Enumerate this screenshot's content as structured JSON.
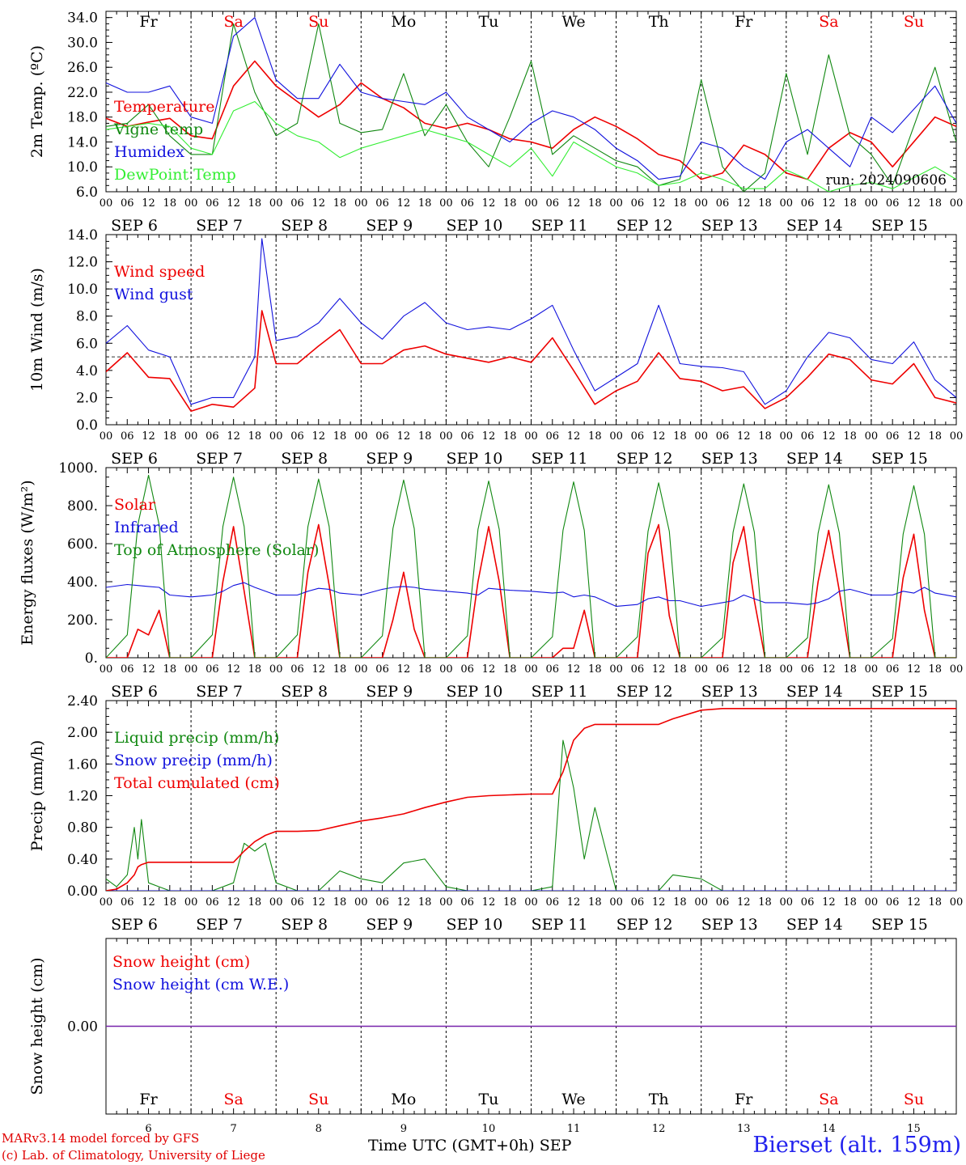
{
  "footer": {
    "model": "MARv3.14 model forced by GFS",
    "copyright": "(c) Lab. of Climatology, University of Liege",
    "time_label": "Time UTC (GMT+0h) SEP",
    "site": "Bierset (alt. 159m)"
  },
  "days": {
    "weekdays": [
      "Fr",
      "Sa",
      "Su",
      "Mo",
      "Tu",
      "We",
      "Th",
      "Fr",
      "Sa",
      "Su"
    ],
    "weekend_flags": [
      false,
      true,
      true,
      false,
      false,
      false,
      false,
      false,
      true,
      true
    ],
    "date_labels": [
      "SEP  6",
      "SEP  7",
      "SEP  8",
      "SEP  9",
      "SEP 10",
      "SEP 11",
      "SEP 12",
      "SEP 13",
      "SEP 14",
      "SEP 15"
    ],
    "day_numbers": [
      "6",
      "7",
      "8",
      "9",
      "10",
      "11",
      "12",
      "13",
      "14",
      "15"
    ],
    "hour_ticks": [
      "00",
      "06",
      "12",
      "18"
    ],
    "end_tick": "00"
  },
  "colors": {
    "red": "#ee0000",
    "green": "#118811",
    "blue": "#1111dd",
    "lightgreen": "#33ee33",
    "purple": "#7722aa",
    "weekend": "#ee0000"
  },
  "chart_data": [
    {
      "type": "line",
      "ylabel": "2m Temp. (ºC)",
      "ylim": [
        6,
        35
      ],
      "yticks": [
        "6.0",
        "10.0",
        "14.0",
        "18.0",
        "22.0",
        "26.0",
        "30.0",
        "34.0"
      ],
      "ytick_values": [
        6,
        10,
        14,
        18,
        22,
        26,
        30,
        34
      ],
      "annotation": "run: 2024090606",
      "show_weekdays": true,
      "x_hours": [
        0,
        6,
        12,
        18,
        24,
        30,
        36,
        42,
        48,
        54,
        60,
        66,
        72,
        78,
        84,
        90,
        96,
        102,
        108,
        114,
        120,
        126,
        132,
        138,
        144,
        150,
        156,
        162,
        168,
        174,
        180,
        186,
        192,
        198,
        204,
        210,
        216,
        222,
        234,
        240
      ],
      "series": [
        {
          "name": "Temperature",
          "color": "red",
          "values": [
            17.8,
            16.5,
            17.2,
            17.8,
            15,
            14.5,
            23,
            27,
            23,
            20.5,
            18,
            20,
            23.5,
            21,
            19.5,
            17,
            16.2,
            17,
            16,
            14.5,
            14,
            13,
            16,
            18,
            16.5,
            14.5,
            12,
            11,
            8,
            9,
            13.5,
            12,
            9,
            8,
            13,
            15.5,
            14,
            10,
            18,
            16.5
          ]
        },
        {
          "name": "Vigne temp",
          "color": "green",
          "values": [
            16.5,
            17,
            20,
            15,
            12,
            12,
            33,
            22,
            15,
            17,
            33,
            17,
            15.5,
            16,
            25,
            15,
            20,
            14,
            10,
            18,
            27,
            12,
            15,
            13,
            11,
            10,
            7,
            8,
            24,
            10,
            6,
            9,
            25,
            12,
            28,
            15,
            12,
            7,
            26,
            14
          ]
        },
        {
          "name": "Humidex",
          "color": "blue",
          "values": [
            23.5,
            22,
            22,
            23,
            18,
            17,
            31,
            34,
            24,
            21,
            21,
            26.5,
            22,
            21,
            20.5,
            20,
            22,
            18,
            16,
            14,
            17,
            19,
            18,
            16,
            13,
            11,
            8,
            8.5,
            14,
            13,
            10,
            8,
            14,
            16,
            13,
            10,
            18,
            15.5,
            23,
            17
          ]
        },
        {
          "name": "DewPoint Temp",
          "color": "lightgreen",
          "values": [
            16,
            16.5,
            17,
            16.5,
            13,
            12,
            19,
            20.5,
            17,
            15,
            14,
            11.5,
            13,
            14,
            15,
            16,
            15,
            14,
            12,
            10,
            13,
            8.5,
            14,
            12,
            10,
            9,
            7,
            7.5,
            9,
            8,
            6.5,
            6.5,
            9.5,
            8,
            6,
            7,
            7.5,
            6.5,
            10,
            8
          ]
        }
      ]
    },
    {
      "type": "line",
      "ylabel": "10m Wind (m/s)",
      "ylim": [
        0,
        14
      ],
      "yticks": [
        "0.0",
        "2.0",
        "4.0",
        "6.0",
        "8.0",
        "10.0",
        "12.0",
        "14.0"
      ],
      "ytick_values": [
        0,
        2,
        4,
        6,
        8,
        10,
        12,
        14
      ],
      "reference_line": 5,
      "x_hours": [
        0,
        6,
        12,
        18,
        24,
        30,
        36,
        42,
        44,
        48,
        54,
        60,
        66,
        72,
        78,
        84,
        90,
        96,
        102,
        108,
        114,
        120,
        126,
        132,
        138,
        144,
        150,
        156,
        162,
        168,
        174,
        180,
        186,
        192,
        198,
        204,
        210,
        216,
        222,
        228,
        234,
        240
      ],
      "series": [
        {
          "name": "Wind speed",
          "color": "red",
          "values": [
            3.9,
            5.3,
            3.5,
            3.4,
            1,
            1.5,
            1.3,
            2.7,
            8.4,
            4.5,
            4.5,
            5.8,
            7,
            4.5,
            4.5,
            5.5,
            5.8,
            5.2,
            4.9,
            4.6,
            5,
            4.6,
            6.4,
            4,
            1.5,
            2.5,
            3.2,
            5.3,
            3.4,
            3.2,
            2.5,
            2.8,
            1.2,
            2,
            3.5,
            5.2,
            4.8,
            3.3,
            3,
            4.5,
            2,
            1.6
          ]
        },
        {
          "name": "Wind gust",
          "color": "blue",
          "values": [
            6,
            7.3,
            5.5,
            5,
            1.5,
            2,
            2,
            5,
            13.7,
            6.2,
            6.5,
            7.5,
            9.3,
            7.5,
            6.3,
            8,
            9,
            7.5,
            7,
            7.2,
            7,
            7.8,
            8.8,
            5.5,
            2.5,
            3.5,
            4.5,
            8.8,
            4.5,
            4.3,
            4.2,
            3.9,
            1.5,
            2.5,
            5,
            6.8,
            6.4,
            4.8,
            4.5,
            6.1,
            3.3,
            2
          ]
        }
      ]
    },
    {
      "type": "line",
      "ylabel": "Energy fluxes (W/m²)",
      "ylim": [
        0,
        1000
      ],
      "yticks": [
        "0.",
        "200.",
        "400.",
        "600.",
        "800.",
        "1000."
      ],
      "ytick_values": [
        0,
        200,
        400,
        600,
        800,
        1000
      ],
      "x_hours": [
        0,
        6,
        9,
        12,
        15,
        18,
        24,
        30,
        33,
        36,
        39,
        42,
        48,
        54,
        57,
        60,
        63,
        66,
        72,
        78,
        81,
        84,
        87,
        90,
        96,
        102,
        105,
        108,
        111,
        114,
        120,
        126,
        129,
        132,
        135,
        138,
        144,
        150,
        153,
        156,
        159,
        162,
        168,
        174,
        177,
        180,
        183,
        186,
        192,
        198,
        201,
        204,
        207,
        210,
        216,
        222,
        225,
        228,
        231,
        234,
        240
      ],
      "series": [
        {
          "name": "Solar",
          "color": "red",
          "values": [
            0,
            0,
            150,
            120,
            250,
            0,
            0,
            0,
            400,
            690,
            350,
            0,
            0,
            0,
            450,
            700,
            380,
            0,
            0,
            0,
            200,
            450,
            150,
            0,
            0,
            0,
            400,
            690,
            400,
            0,
            0,
            0,
            50,
            50,
            250,
            0,
            0,
            0,
            550,
            700,
            220,
            0,
            0,
            0,
            500,
            690,
            300,
            0,
            0,
            0,
            400,
            670,
            350,
            0,
            0,
            0,
            420,
            650,
            250,
            0,
            0
          ]
        },
        {
          "name": "Infrared",
          "color": "blue",
          "values": [
            370,
            385,
            380,
            375,
            370,
            330,
            320,
            330,
            350,
            380,
            395,
            370,
            330,
            330,
            350,
            365,
            360,
            340,
            330,
            360,
            370,
            375,
            370,
            360,
            350,
            340,
            330,
            365,
            360,
            355,
            350,
            340,
            345,
            320,
            330,
            320,
            270,
            280,
            310,
            320,
            300,
            300,
            270,
            290,
            300,
            330,
            310,
            290,
            290,
            280,
            290,
            310,
            350,
            360,
            330,
            330,
            350,
            340,
            370,
            340,
            320
          ]
        },
        {
          "name": "Top of Atmosphere (Solar)",
          "color": "green",
          "values": [
            0,
            120,
            700,
            960,
            700,
            0,
            0,
            120,
            690,
            950,
            690,
            0,
            0,
            120,
            690,
            940,
            690,
            0,
            0,
            115,
            680,
            935,
            680,
            0,
            0,
            115,
            675,
            930,
            675,
            0,
            0,
            110,
            670,
            925,
            670,
            0,
            0,
            110,
            665,
            920,
            665,
            0,
            0,
            105,
            660,
            915,
            660,
            0,
            0,
            105,
            655,
            910,
            655,
            0,
            0,
            100,
            650,
            905,
            650,
            0,
            0
          ]
        }
      ]
    },
    {
      "type": "line",
      "ylabel": "Precip (mm/h)",
      "ylim": [
        0,
        2.4
      ],
      "yticks": [
        "0.00",
        "0.40",
        "0.80",
        "1.20",
        "1.60",
        "2.00",
        "2.40"
      ],
      "ytick_values": [
        0,
        0.4,
        0.8,
        1.2,
        1.6,
        2.0,
        2.4
      ],
      "x_hours": [
        0,
        3,
        6,
        8,
        9,
        10,
        12,
        15,
        18,
        24,
        30,
        36,
        39,
        42,
        45,
        48,
        54,
        60,
        66,
        72,
        78,
        84,
        90,
        96,
        102,
        108,
        114,
        120,
        126,
        129,
        132,
        135,
        138,
        144,
        150,
        156,
        160,
        168,
        174,
        180,
        186,
        192,
        198,
        204,
        210,
        216,
        222,
        228,
        234,
        240
      ],
      "series": [
        {
          "name": "Liquid precip (mm/h)",
          "color": "green",
          "values": [
            0.15,
            0.05,
            0.2,
            0.8,
            0.4,
            0.9,
            0.1,
            0.05,
            0,
            0,
            0,
            0.1,
            0.6,
            0.5,
            0.6,
            0.1,
            0,
            0,
            0.25,
            0.15,
            0.1,
            0.35,
            0.4,
            0.05,
            0,
            0,
            0,
            0,
            0.05,
            1.9,
            1.3,
            0.4,
            1.05,
            0,
            0,
            0,
            0.2,
            0.15,
            0,
            0,
            0,
            0,
            0,
            0,
            0,
            0,
            0,
            0,
            0,
            0
          ]
        },
        {
          "name": "Snow precip (mm/h)",
          "color": "blue",
          "values": [
            0,
            0,
            0,
            0,
            0,
            0,
            0,
            0,
            0,
            0,
            0,
            0,
            0,
            0,
            0,
            0,
            0,
            0,
            0,
            0,
            0,
            0,
            0,
            0,
            0,
            0,
            0,
            0,
            0,
            0,
            0,
            0,
            0,
            0,
            0,
            0,
            0,
            0,
            0,
            0,
            0,
            0,
            0,
            0,
            0,
            0,
            0,
            0,
            0,
            0
          ]
        },
        {
          "name": "Total cumulated (cm)",
          "color": "red",
          "values": [
            0,
            0.02,
            0.1,
            0.2,
            0.3,
            0.33,
            0.36,
            0.36,
            0.36,
            0.36,
            0.36,
            0.36,
            0.5,
            0.62,
            0.7,
            0.75,
            0.75,
            0.76,
            0.82,
            0.88,
            0.92,
            0.97,
            1.05,
            1.12,
            1.18,
            1.2,
            1.21,
            1.22,
            1.22,
            1.5,
            1.9,
            2.05,
            2.1,
            2.1,
            2.1,
            2.1,
            2.17,
            2.28,
            2.3,
            2.3,
            2.3,
            2.3,
            2.3,
            2.3,
            2.3,
            2.3,
            2.3,
            2.3,
            2.3,
            2.3
          ]
        }
      ]
    },
    {
      "type": "line",
      "ylabel": "Snow height (cm)",
      "ylim": [
        -1,
        1
      ],
      "yticks": [
        "0.00"
      ],
      "ytick_values": [
        0
      ],
      "show_weekdays_bottom": true,
      "x_hours": [
        0,
        240
      ],
      "series": [
        {
          "name": "Snow height (cm)",
          "color": "red",
          "values": [
            0,
            0
          ]
        },
        {
          "name": "Snow height (cm W.E.)",
          "color": "blue",
          "values": [
            0,
            0
          ]
        }
      ]
    }
  ]
}
